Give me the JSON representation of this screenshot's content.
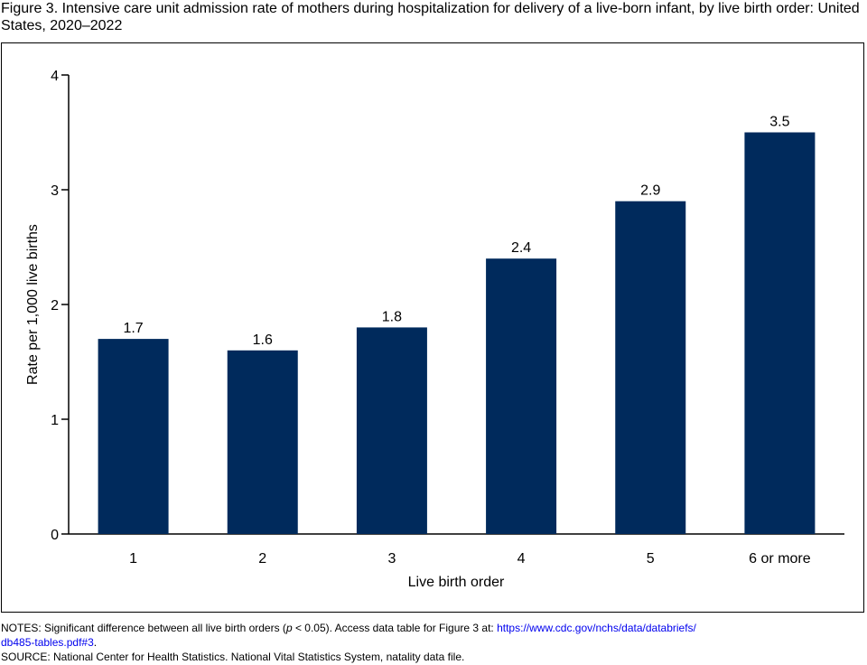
{
  "figure": {
    "title": "Figure 3. Intensive care unit admission rate of mothers during hospitalization for delivery of a live-born infant, by live birth order: United States, 2020–2022"
  },
  "chart_data": {
    "type": "bar",
    "title": "Figure 3. Intensive care unit admission rate of mothers during hospitalization for delivery of a live-born infant, by live birth order: United States, 2020–2022",
    "xlabel": "Live birth order",
    "ylabel": "Rate per 1,000 live births",
    "categories": [
      "1",
      "2",
      "3",
      "4",
      "5",
      "6 or more"
    ],
    "values": [
      1.7,
      1.6,
      1.8,
      2.4,
      2.9,
      3.5
    ],
    "value_labels": [
      "1.7",
      "1.6",
      "1.8",
      "2.4",
      "2.9",
      "3.5"
    ],
    "yticks": [
      "0",
      "1",
      "2",
      "3",
      "4"
    ],
    "ylim": [
      0,
      4
    ],
    "grid": false,
    "bar_color": "#002a5c"
  },
  "notes": {
    "notes_prefix": "NOTES: Significant difference between all live birth orders (",
    "p_symbol": "p",
    "notes_mid": " < 0.05). Access data table for Figure 3 at: ",
    "link_line1": "https://www.cdc.gov/nchs/data/databriefs/",
    "link_line2": "db485-tables.pdf#3",
    "link_suffix": ".",
    "source": "SOURCE: National Center for Health Statistics. National Vital Statistics System, natality data file."
  }
}
